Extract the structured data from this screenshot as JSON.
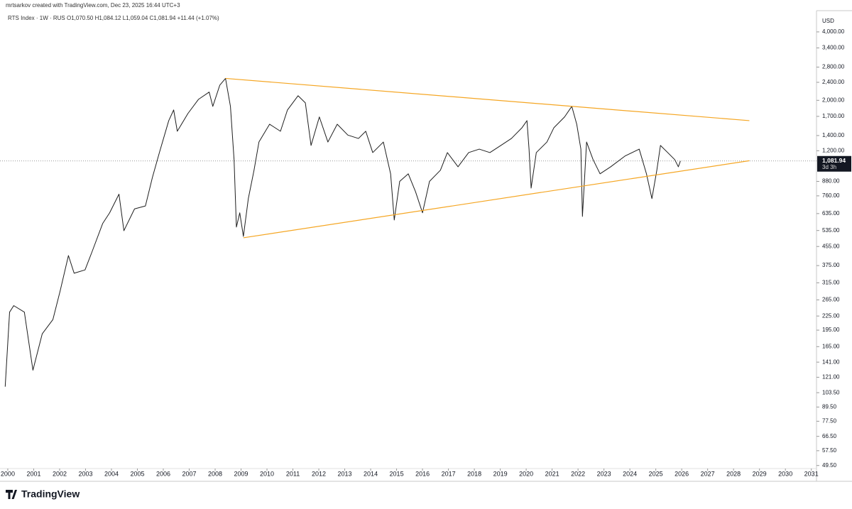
{
  "chart_data": {
    "type": "line",
    "attribution": "mrtsarkov created with TradingView.com, Dec 23, 2025 16:44 UTC+3",
    "legend_text": "RTS Index · 1W · RUS  O1,070.50  H1,084.12  L1,059.04  C1,081.94  +11.44 (+1.07%)",
    "currency": "USD",
    "brand": "TradingView",
    "log_scale": true,
    "color": "#1e1e1e",
    "x": [
      1999.9,
      2000.07,
      2000.23,
      2000.64,
      2000.97,
      2001.33,
      2001.74,
      2002.02,
      2002.34,
      2002.56,
      2002.98,
      2003.25,
      2003.66,
      2003.93,
      2004.29,
      2004.48,
      2004.89,
      2005.31,
      2005.58,
      2005.85,
      2006.21,
      2006.4,
      2006.54,
      2006.95,
      2007.36,
      2007.77,
      2007.91,
      2008.18,
      2008.4,
      2008.59,
      2008.73,
      2008.82,
      2008.95,
      2009.09,
      2009.28,
      2009.5,
      2009.69,
      2010.1,
      2010.52,
      2010.79,
      2011.2,
      2011.48,
      2011.7,
      2012.02,
      2012.35,
      2012.71,
      2013.12,
      2013.53,
      2013.81,
      2014.08,
      2014.49,
      2014.77,
      2014.91,
      2015.12,
      2015.45,
      2015.73,
      2016.0,
      2016.27,
      2016.69,
      2016.96,
      2017.37,
      2017.78,
      2018.19,
      2018.6,
      2019.02,
      2019.43,
      2019.84,
      2020.03,
      2020.11,
      2020.19,
      2020.39,
      2020.8,
      2021.07,
      2021.48,
      2021.76,
      2021.95,
      2022.11,
      2022.17,
      2022.33,
      2022.58,
      2022.85,
      2023.26,
      2023.81,
      2024.36,
      2024.64,
      2024.85,
      2025.04,
      2025.18,
      2025.46,
      2025.73,
      2025.87,
      2025.95
    ],
    "values": [
      110,
      234,
      250,
      234,
      130,
      188,
      217,
      290,
      415,
      347,
      359,
      431,
      574,
      640,
      773,
      534,
      666,
      686,
      916,
      1178,
      1628,
      1814,
      1462,
      1750,
      2021,
      2174,
      1881,
      2333,
      2497,
      1881,
      1097,
      554,
      640,
      504,
      739,
      985,
      1311,
      1570,
      1462,
      1814,
      2095,
      1950,
      1266,
      1690,
      1311,
      1570,
      1406,
      1359,
      1462,
      1178,
      1311,
      950,
      595,
      880,
      950,
      793,
      640,
      880,
      985,
      1178,
      1020,
      1178,
      1220,
      1178,
      1266,
      1359,
      1516,
      1628,
      1220,
      822,
      1178,
      1311,
      1516,
      1690,
      1881,
      1570,
      1220,
      617,
      1311,
      1097,
      950,
      1020,
      1137,
      1220,
      950,
      739,
      985,
      1266,
      1178,
      1097,
      1020,
      1081.94
    ],
    "trendlines": [
      {
        "color": "#f5a623",
        "x": [
          2008.4,
          2028.61
        ],
        "values": [
          2497,
          1628
        ]
      },
      {
        "color": "#f5a623",
        "x": [
          2009.09,
          2028.61
        ],
        "values": [
          497,
          1085
        ]
      }
    ],
    "price_label": {
      "value": 1081.94,
      "label": "1,081.94",
      "countdown": "3d 3h"
    },
    "xlim": [
      1999.7,
      2031.2
    ],
    "ylim": [
      48,
      4960
    ],
    "xticks": [
      2000,
      2001,
      2002,
      2003,
      2004,
      2005,
      2006,
      2007,
      2008,
      2009,
      2010,
      2011,
      2012,
      2013,
      2014,
      2015,
      2016,
      2017,
      2018,
      2019,
      2020,
      2021,
      2022,
      2023,
      2024,
      2025,
      2026,
      2027,
      2028,
      2029,
      2030,
      2031
    ],
    "yticks": [
      {
        "value": 4000,
        "label": "4,000.00"
      },
      {
        "value": 3400,
        "label": "3,400.00"
      },
      {
        "value": 2800,
        "label": "2,800.00"
      },
      {
        "value": 2400,
        "label": "2,400.00"
      },
      {
        "value": 2000,
        "label": "2,000.00"
      },
      {
        "value": 1700,
        "label": "1,700.00"
      },
      {
        "value": 1400,
        "label": "1,400.00"
      },
      {
        "value": 1200,
        "label": "1,200.00"
      },
      {
        "value": 880,
        "label": "880.00"
      },
      {
        "value": 760,
        "label": "760.00"
      },
      {
        "value": 635,
        "label": "635.00"
      },
      {
        "value": 535,
        "label": "535.00"
      },
      {
        "value": 455,
        "label": "455.00"
      },
      {
        "value": 375,
        "label": "375.00"
      },
      {
        "value": 315,
        "label": "315.00"
      },
      {
        "value": 265,
        "label": "265.00"
      },
      {
        "value": 225,
        "label": "225.00"
      },
      {
        "value": 195,
        "label": "195.00"
      },
      {
        "value": 165,
        "label": "165.00"
      },
      {
        "value": 141,
        "label": "141.00"
      },
      {
        "value": 121,
        "label": "121.00"
      },
      {
        "value": 103.5,
        "label": "103.50"
      },
      {
        "value": 89.5,
        "label": "89.50"
      },
      {
        "value": 77.5,
        "label": "77.50"
      },
      {
        "value": 66.5,
        "label": "66.50"
      },
      {
        "value": 57.5,
        "label": "57.50"
      },
      {
        "value": 49.5,
        "label": "49.50"
      }
    ]
  }
}
